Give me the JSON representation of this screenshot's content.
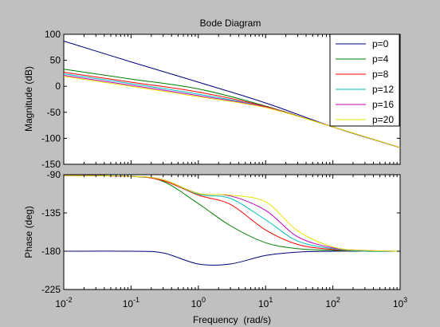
{
  "chart_data": {
    "type": "line",
    "title": "Bode Diagram",
    "xlabel": "Frequency  (rad/s)",
    "xscale": "log",
    "xlim": [
      0.01,
      1000
    ],
    "x_ticks": [
      {
        "base": "10",
        "exp": "-2",
        "value": 0.01
      },
      {
        "base": "10",
        "exp": "-1",
        "value": 0.1
      },
      {
        "base": "10",
        "exp": "0",
        "value": 1
      },
      {
        "base": "10",
        "exp": "1",
        "value": 10
      },
      {
        "base": "10",
        "exp": "2",
        "value": 100
      },
      {
        "base": "10",
        "exp": "3",
        "value": 1000
      }
    ],
    "legend_position": "top-right",
    "grid": false,
    "series": [
      {
        "name": "p=0",
        "color": "#00007f"
      },
      {
        "name": "p=4",
        "color": "#007f00"
      },
      {
        "name": "p=8",
        "color": "#ff0000"
      },
      {
        "name": "p=12",
        "color": "#00bfbf"
      },
      {
        "name": "p=16",
        "color": "#bf00bf"
      },
      {
        "name": "p=20",
        "color": "#e5e500"
      }
    ],
    "magnitude": {
      "ylabel": "Magnitude (dB)",
      "ylim": [
        -150,
        100
      ],
      "y_ticks": [
        100,
        50,
        0,
        -50,
        -100,
        -150
      ],
      "x": [
        0.01,
        0.1,
        1,
        10,
        100,
        1000
      ],
      "series_values": [
        [
          87,
          47,
          8,
          -32,
          -78,
          -118
        ],
        [
          33,
          14,
          -5,
          -38,
          -78,
          -118
        ],
        [
          27,
          8,
          -11,
          -39,
          -78,
          -118
        ],
        [
          24,
          5,
          -15,
          -40,
          -78,
          -118
        ],
        [
          21,
          2,
          -18,
          -40,
          -78,
          -118
        ],
        [
          19,
          0,
          -20,
          -41,
          -78,
          -118
        ]
      ]
    },
    "phase": {
      "ylabel": "Phase (deg)",
      "ylim": [
        -225,
        -90
      ],
      "y_ticks": [
        -90,
        -135,
        -180,
        -225
      ],
      "x": [
        0.01,
        0.1,
        0.3,
        1,
        3,
        10,
        30,
        100,
        300,
        1000
      ],
      "series_values": [
        [
          -180,
          -180,
          -182,
          -195,
          -195,
          -185,
          -181,
          -180,
          -180,
          -180
        ],
        [
          -91,
          -92,
          -98,
          -124,
          -150,
          -170,
          -177,
          -179,
          -180,
          -180
        ],
        [
          -91,
          -92,
          -97,
          -114,
          -125,
          -155,
          -172,
          -178,
          -180,
          -180
        ],
        [
          -91,
          -92,
          -96,
          -113,
          -118,
          -143,
          -168,
          -177,
          -180,
          -180
        ],
        [
          -91,
          -92,
          -96,
          -112,
          -115,
          -132,
          -163,
          -176,
          -179,
          -180
        ],
        [
          -91,
          -92,
          -96,
          -112,
          -114,
          -122,
          -156,
          -175,
          -179,
          -180
        ]
      ]
    }
  }
}
